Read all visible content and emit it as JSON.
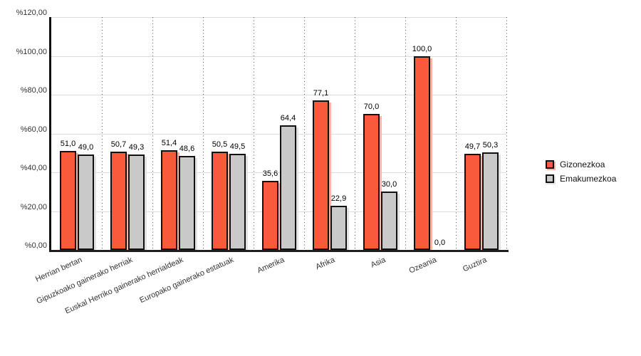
{
  "chart_data": {
    "type": "bar",
    "title": "",
    "categories": [
      "Herrian bertan",
      "Gipuzkoako gainerako herriak",
      "Euskal Herriko gainerako herrialdeak",
      "Europako gainerako estatuak",
      "Amerika",
      "Afrika",
      "Asia",
      "Ozeania",
      "Guztira"
    ],
    "series": [
      {
        "name": "Gizonezkoa",
        "color": "#FA5A3C",
        "shadow_color": "#FBB5A5",
        "values": [
          51.0,
          50.7,
          51.4,
          50.5,
          35.6,
          77.1,
          70.0,
          100.0,
          49.7
        ]
      },
      {
        "name": "Emakumezkoa",
        "color": "#C9C9C9",
        "shadow_color": "#E2E2E2",
        "values": [
          49.0,
          49.3,
          48.6,
          49.5,
          64.4,
          22.9,
          30.0,
          0.0,
          50.3
        ]
      }
    ],
    "value_labels": [
      [
        "51,0",
        "50,7",
        "51,4",
        "50,5",
        "35,6",
        "77,1",
        "70,0",
        "100,0",
        "49,7"
      ],
      [
        "49,0",
        "49,3",
        "48,6",
        "49,5",
        "64,4",
        "22,9",
        "30,0",
        "0,0",
        "50,3"
      ]
    ],
    "ylim": [
      0,
      120
    ],
    "y_tick_step": 20,
    "y_tick_labels": [
      "%0,00",
      "%20,00",
      "%40,00",
      "%60,00",
      "%80,00",
      "%100,00",
      "%120,00"
    ],
    "grid": {
      "horizontal": true,
      "vertical": "dotted"
    },
    "legend_position": "right",
    "xlabel": "",
    "ylabel": ""
  }
}
